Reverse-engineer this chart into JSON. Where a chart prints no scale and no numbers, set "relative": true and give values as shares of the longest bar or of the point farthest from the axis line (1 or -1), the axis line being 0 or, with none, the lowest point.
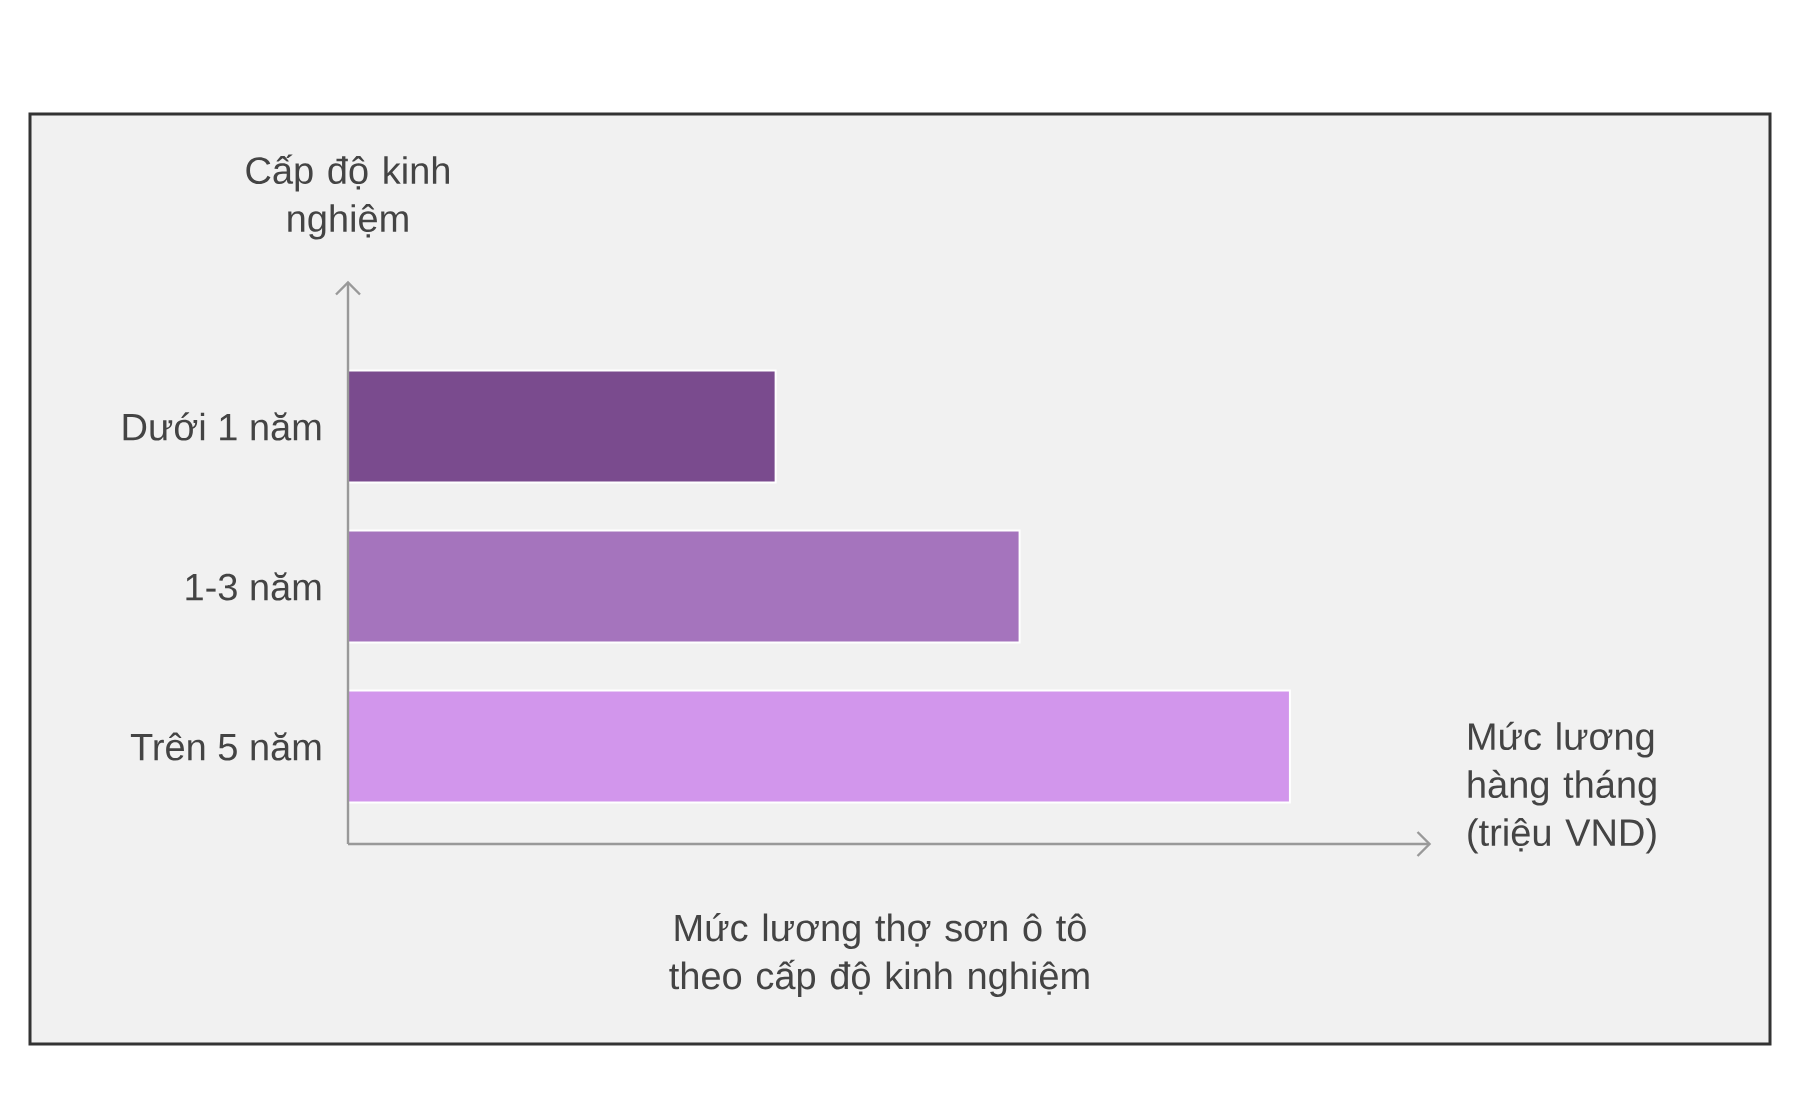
{
  "chart_data": {
    "type": "bar",
    "orientation": "horizontal",
    "relative": true,
    "title": "Mức lương thợ sơn ô tô theo cấp độ kinh nghiệm",
    "xlabel": "Mức lương hàng tháng (triệu VND)",
    "ylabel": "Cấp độ kinh nghiệm",
    "categories": [
      "Dưới 1 năm",
      "1-3 năm",
      "Trên 5 năm"
    ],
    "values": [
      0.454,
      0.713,
      1
    ],
    "colors": [
      "#7a4b8e",
      "#a574bd",
      "#d296ec"
    ]
  }
}
